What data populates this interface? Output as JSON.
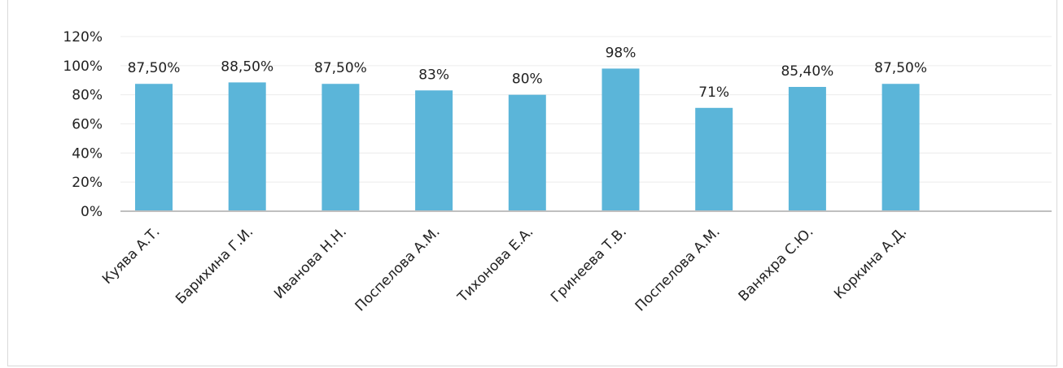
{
  "chart_data": {
    "type": "bar",
    "categories": [
      "Куява А.Т.",
      "Барихина Г.И.",
      "Иванова Н.Н.",
      "Поспелова А.М.",
      "Тихонова Е.А.",
      "Гринеева Т.В.",
      "Поспелова А.М.",
      "Ваняхра С.Ю.",
      "Коркина А.Д."
    ],
    "values": [
      87.5,
      88.5,
      87.5,
      83,
      80,
      98,
      71,
      85.4,
      87.5
    ],
    "data_labels": [
      "87,50%",
      "88,50%",
      "87,50%",
      "83%",
      "80%",
      "98%",
      "71%",
      "85,40%",
      "87,50%"
    ],
    "yticks": [
      "0%",
      "20%",
      "40%",
      "60%",
      "80%",
      "100%",
      "120%"
    ],
    "ylim": [
      0,
      120
    ],
    "title": "",
    "xlabel": "",
    "ylabel": "",
    "grid": true,
    "legend": "none",
    "colors": {
      "bar": "#5bb5d9",
      "axis": "#bfbfbf",
      "grid": "#ececec",
      "text": "#222222"
    }
  }
}
